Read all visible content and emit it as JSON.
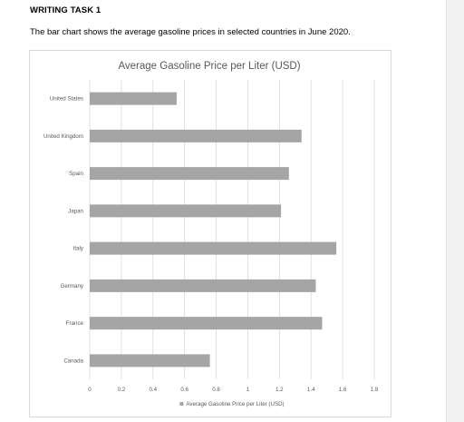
{
  "header": {
    "task_title": "WRITING TASK 1",
    "description": "The bar chart shows the average gasoline prices in selected countries in June 2020."
  },
  "chart_data": {
    "type": "bar",
    "orientation": "horizontal",
    "title": "Average Gasoline Price per Liter (USD)",
    "categories": [
      "United States",
      "United Kingdom",
      "Spain",
      "Japan",
      "Italy",
      "Germany",
      "France",
      "Canada"
    ],
    "series": [
      {
        "name": "Average Gasoline Price per Liter (USD)",
        "values": [
          0.55,
          1.34,
          1.26,
          1.21,
          1.56,
          1.43,
          1.47,
          0.76
        ],
        "color": "#a5a5a5"
      }
    ],
    "x_ticks": [
      "0",
      "0.2",
      "0.4",
      "0.6",
      "0.8",
      "1",
      "1.2",
      "1.4",
      "1.6",
      "1.8"
    ],
    "xlim": [
      0,
      1.8
    ],
    "grid": true,
    "legend_position": "bottom",
    "gridline_color": "#d9d9d9"
  }
}
